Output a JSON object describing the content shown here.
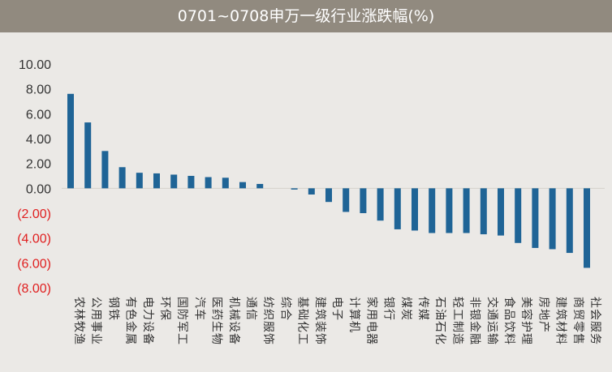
{
  "chart_data": {
    "type": "bar",
    "title": "0701~0708申万一级行业涨跌幅(%)",
    "ylim": [
      -8,
      10
    ],
    "yticks": [
      "10.00",
      "8.00",
      "6.00",
      "4.00",
      "2.00",
      "0.00",
      "(2.00)",
      "(4.00)",
      "(6.00)",
      "(8.00)"
    ],
    "categories": [
      "农林牧渔",
      "公用事业",
      "钢铁",
      "有色金属",
      "电力设备",
      "环保",
      "国防军工",
      "汽车",
      "医药生物",
      "机械设备",
      "通信",
      "纺织服饰",
      "综合",
      "基础化工",
      "建筑装饰",
      "电子",
      "计算机",
      "家用电器",
      "银行",
      "煤炭",
      "传媒",
      "石油石化",
      "轻工制造",
      "非银金融",
      "交通运输",
      "食品饮料",
      "美容护理",
      "房地产",
      "建筑材料",
      "商贸零售",
      "社会服务"
    ],
    "values": [
      7.6,
      5.3,
      3.0,
      1.7,
      1.25,
      1.2,
      1.1,
      1.0,
      0.9,
      0.85,
      0.5,
      0.35,
      0.0,
      -0.1,
      -0.5,
      -1.1,
      -1.9,
      -2.0,
      -2.6,
      -3.3,
      -3.4,
      -3.6,
      -3.6,
      -3.6,
      -3.7,
      -3.8,
      -4.4,
      -4.8,
      -4.9,
      -5.2,
      -6.4
    ],
    "bar_color": "#1f6496",
    "negative_tick_color": "#e02020",
    "grid": false,
    "legend": "none"
  }
}
